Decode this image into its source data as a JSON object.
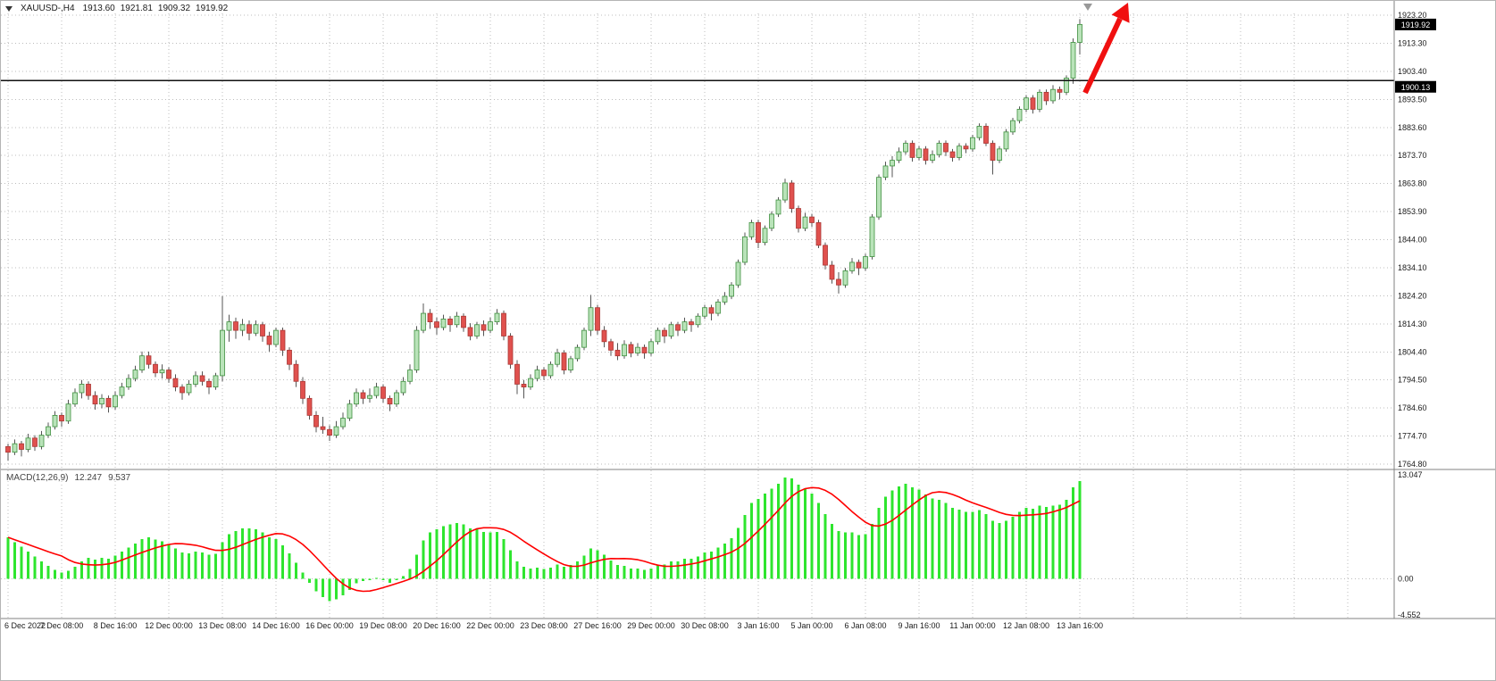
{
  "header": {
    "symbol_timeframe": "XAUUSD-,H4",
    "open": "1913.60",
    "high": "1921.81",
    "low": "1909.32",
    "close": "1919.92"
  },
  "macd": {
    "name": "MACD(12,26,9)",
    "value_main": "12.247",
    "value_signal": "9.537"
  },
  "colors": {
    "up_fill": "#b9e3b9",
    "up_stroke": "#3f8f3f",
    "down_fill": "#e0514e",
    "down_stroke": "#a93734",
    "wick": "#555555",
    "macd_bar": "#2ee52e",
    "macd_signal": "#ff0000",
    "grid": "#bcbcbc",
    "hline": "#111111",
    "tag_bg": "#000000",
    "tag_text": "#ffffff",
    "axis_text": "#1a1a1a",
    "separator": "#808080",
    "arrow": "#f01010",
    "shift_marker": "#999999"
  },
  "annotations": {
    "trend_arrow": {
      "shape": "arrow",
      "direction": "up-right",
      "color": "#f01010"
    },
    "shift_marker": {
      "shape": "triangle-down",
      "color": "#999999"
    }
  },
  "chart_data": [
    {
      "type": "candlestick",
      "title": "XAUUSD- H4",
      "ylim": [
        1764.8,
        1923.2
      ],
      "y_ticks": [
        "1923.20",
        "1913.30",
        "1903.40",
        "1893.50",
        "1883.60",
        "1873.70",
        "1863.80",
        "1853.90",
        "1844.00",
        "1834.10",
        "1824.20",
        "1814.30",
        "1804.40",
        "1794.50",
        "1784.60",
        "1774.70",
        "1764.80"
      ],
      "x_tick_step": 8,
      "x_tick_labels": [
        "6 Dec 2022",
        "7 Dec 08:00",
        "8 Dec 16:00",
        "12 Dec 00:00",
        "13 Dec 08:00",
        "14 Dec 16:00",
        "16 Dec 00:00",
        "19 Dec 08:00",
        "20 Dec 16:00",
        "22 Dec 00:00",
        "23 Dec 08:00",
        "27 Dec 16:00",
        "29 Dec 00:00",
        "30 Dec 08:00",
        "3 Jan 16:00",
        "5 Jan 00:00",
        "6 Jan 08:00",
        "9 Jan 16:00",
        "11 Jan 00:00",
        "12 Jan 08:00",
        "13 Jan 16:00"
      ],
      "hline": {
        "value": 1900.13,
        "label": "1900.13"
      },
      "last_price_tag": {
        "value": 1919.92,
        "label": "1919.92"
      },
      "ohlc": [
        [
          1771,
          1772,
          1766,
          1769
        ],
        [
          1769,
          1773.5,
          1768,
          1772
        ],
        [
          1772,
          1773,
          1767.5,
          1770
        ],
        [
          1770,
          1775.5,
          1769,
          1774
        ],
        [
          1774,
          1775,
          1769.5,
          1771
        ],
        [
          1771,
          1776.5,
          1770,
          1775
        ],
        [
          1775,
          1779.5,
          1774,
          1778
        ],
        [
          1778,
          1783.5,
          1777,
          1782
        ],
        [
          1782,
          1783,
          1778,
          1780
        ],
        [
          1780,
          1787.5,
          1779,
          1786
        ],
        [
          1786,
          1791.5,
          1785,
          1790
        ],
        [
          1790,
          1794.5,
          1788,
          1793
        ],
        [
          1793,
          1794,
          1787.5,
          1789
        ],
        [
          1789,
          1790.5,
          1784,
          1786
        ],
        [
          1786,
          1789.5,
          1784.5,
          1788
        ],
        [
          1788,
          1789,
          1783,
          1785
        ],
        [
          1785,
          1790.5,
          1784,
          1789
        ],
        [
          1789,
          1793.5,
          1788,
          1792
        ],
        [
          1792,
          1796.5,
          1791,
          1795
        ],
        [
          1795,
          1799.5,
          1794,
          1798
        ],
        [
          1798,
          1804.5,
          1797,
          1803
        ],
        [
          1803,
          1804.5,
          1798.5,
          1800
        ],
        [
          1800,
          1801,
          1795.5,
          1797
        ],
        [
          1797,
          1800,
          1795,
          1798
        ],
        [
          1798,
          1799,
          1793.5,
          1795
        ],
        [
          1795,
          1796.5,
          1790.5,
          1792
        ],
        [
          1792,
          1793,
          1787.5,
          1790
        ],
        [
          1790,
          1794.5,
          1789,
          1793
        ],
        [
          1793,
          1797.5,
          1792,
          1796
        ],
        [
          1796,
          1797.5,
          1792.5,
          1794
        ],
        [
          1794,
          1795,
          1789.5,
          1792
        ],
        [
          1792,
          1797,
          1791,
          1796
        ],
        [
          1796,
          1824,
          1794,
          1812
        ],
        [
          1812,
          1817.5,
          1808,
          1815
        ],
        [
          1815,
          1816.5,
          1809,
          1812
        ],
        [
          1812,
          1816,
          1810,
          1814
        ],
        [
          1814,
          1815.5,
          1808.5,
          1811
        ],
        [
          1811,
          1815.5,
          1810,
          1814
        ],
        [
          1814,
          1815,
          1808,
          1810
        ],
        [
          1810,
          1811.5,
          1804.5,
          1807
        ],
        [
          1807,
          1813,
          1806,
          1812
        ],
        [
          1812,
          1813,
          1803,
          1805
        ],
        [
          1805,
          1806,
          1798,
          1800
        ],
        [
          1800,
          1801.5,
          1792,
          1794
        ],
        [
          1794,
          1795.5,
          1786,
          1788
        ],
        [
          1788,
          1789,
          1780.5,
          1782
        ],
        [
          1782,
          1783.5,
          1776,
          1778
        ],
        [
          1778,
          1781.5,
          1775.5,
          1777
        ],
        [
          1777,
          1778.5,
          1773,
          1775
        ],
        [
          1775,
          1780,
          1774,
          1778
        ],
        [
          1778,
          1783,
          1777,
          1781
        ],
        [
          1781,
          1787.5,
          1780,
          1786
        ],
        [
          1786,
          1791.5,
          1785,
          1790
        ],
        [
          1790,
          1791,
          1786,
          1788
        ],
        [
          1788,
          1791.5,
          1786.5,
          1789
        ],
        [
          1789,
          1793.5,
          1788,
          1792
        ],
        [
          1792,
          1793,
          1786.5,
          1788
        ],
        [
          1788,
          1789,
          1783.5,
          1786
        ],
        [
          1786,
          1791,
          1785,
          1790
        ],
        [
          1790,
          1795.5,
          1789,
          1794
        ],
        [
          1794,
          1800,
          1793,
          1798
        ],
        [
          1798,
          1813.5,
          1797,
          1812
        ],
        [
          1812,
          1821.5,
          1811,
          1818
        ],
        [
          1818,
          1819.5,
          1812.5,
          1815
        ],
        [
          1815,
          1816.5,
          1810.5,
          1813
        ],
        [
          1813,
          1817.5,
          1812,
          1816
        ],
        [
          1816,
          1817,
          1811.5,
          1814
        ],
        [
          1814,
          1818.5,
          1813,
          1817
        ],
        [
          1817,
          1818,
          1811.5,
          1813
        ],
        [
          1813,
          1814.5,
          1808.5,
          1810
        ],
        [
          1810,
          1815,
          1809,
          1814
        ],
        [
          1814,
          1815.5,
          1810,
          1812
        ],
        [
          1812,
          1816.5,
          1811,
          1815
        ],
        [
          1815,
          1819.5,
          1814,
          1818
        ],
        [
          1818,
          1819,
          1808.5,
          1810
        ],
        [
          1810,
          1811,
          1798.5,
          1800
        ],
        [
          1800,
          1801.5,
          1789.5,
          1793
        ],
        [
          1793,
          1794.5,
          1788,
          1792
        ],
        [
          1792,
          1796.5,
          1791,
          1795
        ],
        [
          1795,
          1799.5,
          1794,
          1798
        ],
        [
          1798,
          1799,
          1794.5,
          1796
        ],
        [
          1796,
          1801,
          1795,
          1800
        ],
        [
          1800,
          1805.5,
          1799,
          1804
        ],
        [
          1804,
          1805,
          1796.5,
          1798
        ],
        [
          1798,
          1803,
          1797,
          1802
        ],
        [
          1802,
          1807,
          1801,
          1806
        ],
        [
          1806,
          1813,
          1805,
          1812
        ],
        [
          1812,
          1824.5,
          1810,
          1820
        ],
        [
          1820,
          1821,
          1810.5,
          1812
        ],
        [
          1812,
          1813.5,
          1806,
          1808
        ],
        [
          1808,
          1809,
          1803,
          1805
        ],
        [
          1805,
          1807.5,
          1801.5,
          1803
        ],
        [
          1803,
          1808.5,
          1802,
          1807
        ],
        [
          1807,
          1808,
          1802.5,
          1804
        ],
        [
          1804,
          1807.5,
          1803,
          1806
        ],
        [
          1806,
          1807,
          1802,
          1804
        ],
        [
          1804,
          1809,
          1803,
          1808
        ],
        [
          1808,
          1813,
          1807,
          1812
        ],
        [
          1812,
          1813,
          1807.5,
          1810
        ],
        [
          1810,
          1815,
          1809,
          1814
        ],
        [
          1814,
          1815,
          1810,
          1812
        ],
        [
          1812,
          1816.5,
          1811,
          1815
        ],
        [
          1815,
          1816,
          1811.5,
          1814
        ],
        [
          1814,
          1818,
          1813,
          1817
        ],
        [
          1817,
          1821,
          1816,
          1820
        ],
        [
          1820,
          1821,
          1815.5,
          1818
        ],
        [
          1818,
          1823,
          1817,
          1822
        ],
        [
          1822,
          1825.5,
          1821,
          1824
        ],
        [
          1824,
          1829,
          1823,
          1828
        ],
        [
          1828,
          1837,
          1827,
          1836
        ],
        [
          1836,
          1846.5,
          1835,
          1845
        ],
        [
          1845,
          1851,
          1844,
          1850
        ],
        [
          1850,
          1851,
          1841,
          1843
        ],
        [
          1843,
          1849,
          1842,
          1848
        ],
        [
          1848,
          1854,
          1847,
          1853
        ],
        [
          1853,
          1859,
          1852,
          1858
        ],
        [
          1858,
          1865.5,
          1857,
          1864
        ],
        [
          1864,
          1865,
          1853.5,
          1855
        ],
        [
          1855,
          1856,
          1846.5,
          1848
        ],
        [
          1848,
          1853.5,
          1847,
          1852
        ],
        [
          1852,
          1853,
          1848.5,
          1850
        ],
        [
          1850,
          1851,
          1841,
          1842
        ],
        [
          1842,
          1843,
          1833.5,
          1835
        ],
        [
          1835,
          1836.5,
          1828.5,
          1830
        ],
        [
          1830,
          1832.5,
          1825,
          1828
        ],
        [
          1828,
          1834,
          1827,
          1833
        ],
        [
          1833,
          1837.5,
          1832,
          1836
        ],
        [
          1836,
          1837,
          1831.5,
          1834
        ],
        [
          1834,
          1839,
          1833,
          1838
        ],
        [
          1838,
          1853,
          1837,
          1852
        ],
        [
          1852,
          1867,
          1851,
          1866
        ],
        [
          1866,
          1871.5,
          1865,
          1870
        ],
        [
          1870,
          1873.5,
          1866,
          1872
        ],
        [
          1872,
          1876.5,
          1871,
          1875
        ],
        [
          1875,
          1879,
          1874,
          1878
        ],
        [
          1878,
          1879,
          1871.5,
          1873
        ],
        [
          1873,
          1877,
          1872,
          1876
        ],
        [
          1876,
          1877,
          1870.5,
          1872
        ],
        [
          1872,
          1875.5,
          1871,
          1874
        ],
        [
          1874,
          1879,
          1873,
          1878
        ],
        [
          1878,
          1879,
          1873.5,
          1875
        ],
        [
          1875,
          1876,
          1871.5,
          1873
        ],
        [
          1873,
          1878,
          1872,
          1877
        ],
        [
          1877,
          1878,
          1874.5,
          1876
        ],
        [
          1876,
          1881,
          1875,
          1880
        ],
        [
          1880,
          1885,
          1879,
          1884
        ],
        [
          1884,
          1885,
          1877,
          1878
        ],
        [
          1878,
          1879,
          1867,
          1872
        ],
        [
          1872,
          1877,
          1871,
          1876
        ],
        [
          1876,
          1883,
          1875,
          1882
        ],
        [
          1882,
          1887,
          1881,
          1886
        ],
        [
          1886,
          1891,
          1885,
          1890
        ],
        [
          1890,
          1895,
          1889,
          1894
        ],
        [
          1894,
          1895,
          1888.5,
          1890
        ],
        [
          1890,
          1897,
          1889,
          1896
        ],
        [
          1896,
          1897,
          1891.5,
          1893
        ],
        [
          1893,
          1898.5,
          1892,
          1897
        ],
        [
          1897,
          1898,
          1893.5,
          1896
        ],
        [
          1896,
          1902,
          1895,
          1901
        ],
        [
          1901,
          1915,
          1899,
          1913.6
        ],
        [
          1913.6,
          1921.81,
          1909.32,
          1919.92
        ]
      ]
    },
    {
      "type": "bar",
      "name": "MACD(12,26,9)",
      "ylim": [
        -4.552,
        13.047
      ],
      "y_ticks": [
        {
          "label": "13.047",
          "value": 13.047
        },
        {
          "label": "0.00",
          "value": 0
        },
        {
          "label": "-4.552",
          "value": -4.552
        }
      ],
      "signal_period": 9,
      "values_display": [
        "12.247",
        "9.537"
      ],
      "values": [
        5.2,
        4.6,
        4.0,
        3.4,
        2.8,
        2.2,
        1.6,
        1.1,
        0.8,
        1.0,
        1.5,
        2.2,
        2.6,
        2.4,
        2.6,
        2.5,
        2.9,
        3.4,
        3.9,
        4.4,
        5.0,
        5.2,
        4.9,
        4.7,
        4.3,
        3.8,
        3.3,
        3.2,
        3.4,
        3.3,
        3.0,
        3.1,
        4.6,
        5.6,
        6.0,
        6.3,
        6.3,
        6.2,
        5.8,
        5.2,
        5.0,
        4.2,
        3.2,
        2.0,
        0.8,
        -0.5,
        -1.6,
        -2.3,
        -2.8,
        -2.6,
        -2.1,
        -1.4,
        -0.6,
        -0.3,
        -0.2,
        0.1,
        -0.2,
        -0.5,
        -0.2,
        0.3,
        1.2,
        3.0,
        4.8,
        5.8,
        6.2,
        6.6,
        6.8,
        7.0,
        6.8,
        6.3,
        6.2,
        5.9,
        5.8,
        5.9,
        5.0,
        3.6,
        2.2,
        1.5,
        1.3,
        1.4,
        1.2,
        1.4,
        1.8,
        1.5,
        1.7,
        2.2,
        2.9,
        3.8,
        3.6,
        3.0,
        2.3,
        1.7,
        1.6,
        1.3,
        1.3,
        1.1,
        1.3,
        1.7,
        1.8,
        2.2,
        2.2,
        2.5,
        2.5,
        2.8,
        3.3,
        3.4,
        3.9,
        4.4,
        5.1,
        6.4,
        8.0,
        9.5,
        10.0,
        10.7,
        11.3,
        11.9,
        12.7,
        12.6,
        11.8,
        11.3,
        10.7,
        9.5,
        8.1,
        6.9,
        6.0,
        5.8,
        5.8,
        5.5,
        5.6,
        6.9,
        8.9,
        10.3,
        11.1,
        11.6,
        11.9,
        11.5,
        11.2,
        10.6,
        10.1,
        9.9,
        9.5,
        8.9,
        8.7,
        8.4,
        8.4,
        8.6,
        8.1,
        7.3,
        7.0,
        7.3,
        7.8,
        8.4,
        8.9,
        8.8,
        9.2,
        9.0,
        9.2,
        9.3,
        9.9,
        11.5,
        12.247
      ]
    }
  ]
}
